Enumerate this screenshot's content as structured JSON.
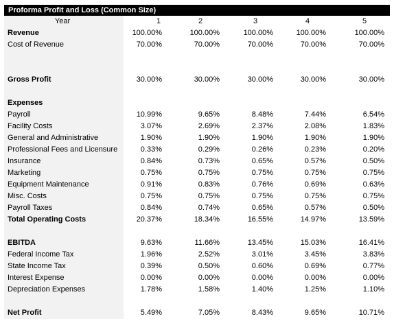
{
  "title": "Proforma Profit and Loss (Common Size)",
  "header": {
    "label": "Year",
    "cols": [
      "1",
      "2",
      "3",
      "4",
      "5"
    ]
  },
  "rows": [
    {
      "label": "Revenue",
      "bold": true,
      "values": [
        "100.00%",
        "100.00%",
        "100.00%",
        "100.00%",
        "100.00%"
      ]
    },
    {
      "label": "Cost of Revenue",
      "bold": false,
      "values": [
        "70.00%",
        "70.00%",
        "70.00%",
        "70.00%",
        "70.00%"
      ]
    },
    {
      "label": "",
      "bold": false,
      "values": [
        "",
        "",
        "",
        "",
        ""
      ]
    },
    {
      "label": "",
      "bold": false,
      "values": [
        "",
        "",
        "",
        "",
        ""
      ]
    },
    {
      "label": "Gross Profit",
      "bold": true,
      "values": [
        "30.00%",
        "30.00%",
        "30.00%",
        "30.00%",
        "30.00%"
      ]
    },
    {
      "label": "",
      "bold": false,
      "values": [
        "",
        "",
        "",
        "",
        ""
      ]
    },
    {
      "label": "Expenses",
      "bold": true,
      "values": [
        "",
        "",
        "",
        "",
        ""
      ]
    },
    {
      "label": "Payroll",
      "bold": false,
      "values": [
        "10.99%",
        "9.65%",
        "8.48%",
        "7.44%",
        "6.54%"
      ]
    },
    {
      "label": "Facility Costs",
      "bold": false,
      "values": [
        "3.07%",
        "2.69%",
        "2.37%",
        "2.08%",
        "1.83%"
      ]
    },
    {
      "label": "General and Administrative",
      "bold": false,
      "values": [
        "1.90%",
        "1.90%",
        "1.90%",
        "1.90%",
        "1.90%"
      ]
    },
    {
      "label": "Professional Fees and Licensure",
      "bold": false,
      "values": [
        "0.33%",
        "0.29%",
        "0.26%",
        "0.23%",
        "0.20%"
      ]
    },
    {
      "label": "Insurance",
      "bold": false,
      "values": [
        "0.84%",
        "0.73%",
        "0.65%",
        "0.57%",
        "0.50%"
      ]
    },
    {
      "label": "Marketing",
      "bold": false,
      "values": [
        "0.75%",
        "0.75%",
        "0.75%",
        "0.75%",
        "0.75%"
      ]
    },
    {
      "label": "Equipment Maintenance",
      "bold": false,
      "values": [
        "0.91%",
        "0.83%",
        "0.76%",
        "0.69%",
        "0.63%"
      ]
    },
    {
      "label": "Misc. Costs",
      "bold": false,
      "values": [
        "0.75%",
        "0.75%",
        "0.75%",
        "0.75%",
        "0.75%"
      ]
    },
    {
      "label": "Payroll Taxes",
      "bold": false,
      "values": [
        "0.84%",
        "0.74%",
        "0.65%",
        "0.57%",
        "0.50%"
      ]
    },
    {
      "label": "Total Operating Costs",
      "bold": true,
      "values": [
        "20.37%",
        "18.34%",
        "16.55%",
        "14.97%",
        "13.59%"
      ]
    },
    {
      "label": "",
      "bold": false,
      "values": [
        "",
        "",
        "",
        "",
        ""
      ]
    },
    {
      "label": "EBITDA",
      "bold": true,
      "values": [
        "9.63%",
        "11.66%",
        "13.45%",
        "15.03%",
        "16.41%"
      ]
    },
    {
      "label": "Federal Income Tax",
      "bold": false,
      "values": [
        "1.96%",
        "2.52%",
        "3.01%",
        "3.45%",
        "3.83%"
      ]
    },
    {
      "label": "State Income Tax",
      "bold": false,
      "values": [
        "0.39%",
        "0.50%",
        "0.60%",
        "0.69%",
        "0.77%"
      ]
    },
    {
      "label": "Interest Expense",
      "bold": false,
      "values": [
        "0.00%",
        "0.00%",
        "0.00%",
        "0.00%",
        "0.00%"
      ]
    },
    {
      "label": "Depreciation Expenses",
      "bold": false,
      "values": [
        "1.78%",
        "1.58%",
        "1.40%",
        "1.25%",
        "1.10%"
      ]
    },
    {
      "label": "",
      "bold": false,
      "values": [
        "",
        "",
        "",
        "",
        ""
      ]
    },
    {
      "label": "Net Profit",
      "bold": true,
      "values": [
        "5.49%",
        "7.05%",
        "8.43%",
        "9.65%",
        "10.71%"
      ]
    }
  ]
}
